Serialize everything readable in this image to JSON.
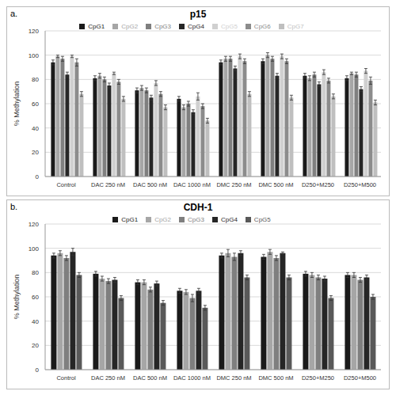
{
  "chart_data": [
    {
      "type": "bar",
      "title": "p15",
      "annotations": [
        "a."
      ],
      "ylabel": "% Methylation",
      "categories": [
        "Control",
        "DAC 250 nM",
        "DAC 500 nM",
        "DAC 1000 nM",
        "DMC 250 nM",
        "DMC 500 nM",
        "D250+M250",
        "D250+M500"
      ],
      "series": [
        {
          "name": "CpG1",
          "color": "#1a1a1a",
          "values": [
            94,
            81,
            71,
            64,
            94,
            95,
            83,
            81
          ],
          "errors": [
            2,
            2,
            2,
            2,
            2,
            2,
            2,
            2
          ]
        },
        {
          "name": "CpG2",
          "color": "#a6a6a6",
          "values": [
            99,
            83,
            73,
            57,
            97,
            100,
            81,
            85
          ],
          "errors": [
            1,
            2,
            2,
            2,
            2,
            2,
            2,
            1
          ]
        },
        {
          "name": "CpG3",
          "color": "#7f7f7f",
          "values": [
            97,
            80,
            71,
            60,
            97,
            97,
            84,
            84
          ],
          "errors": [
            2,
            2,
            2,
            2,
            2,
            2,
            2,
            2
          ]
        },
        {
          "name": "CpG4",
          "color": "#262626",
          "values": [
            84,
            75,
            65,
            53,
            89,
            83,
            76,
            72
          ],
          "errors": [
            2,
            2,
            2,
            2,
            2,
            2,
            2,
            2
          ]
        },
        {
          "name": "CpG5",
          "color": "#d0d0d0",
          "values": [
            99,
            85,
            77,
            66,
            99,
            99,
            86,
            87
          ],
          "errors": [
            1,
            1,
            2,
            3,
            2,
            2,
            2,
            2
          ]
        },
        {
          "name": "CpG6",
          "color": "#8c8c8c",
          "values": [
            94,
            78,
            68,
            58,
            95,
            95,
            79,
            79
          ],
          "errors": [
            3,
            2,
            2,
            2,
            2,
            2,
            2,
            3
          ]
        },
        {
          "name": "CpG7",
          "color": "#bfbfbf",
          "values": [
            68,
            64,
            57,
            46,
            68,
            65,
            66,
            61
          ],
          "errors": [
            2,
            2,
            2,
            2,
            2,
            2,
            2,
            2
          ]
        }
      ],
      "ylim": [
        0,
        120
      ],
      "yticks": [
        0,
        20,
        40,
        60,
        80,
        100,
        120
      ],
      "grid": true,
      "legend": "top"
    },
    {
      "type": "bar",
      "title": "CDH-1",
      "annotations": [
        "b."
      ],
      "ylabel": "% Methylation",
      "categories": [
        "Control",
        "DAC 250 nM",
        "DAC 500 nM",
        "DAC 1000 nM",
        "DMC 250 nM",
        "DMC 500 nM",
        "D250+M250",
        "D250+M500"
      ],
      "series": [
        {
          "name": "CpG1",
          "color": "#1a1a1a",
          "values": [
            94,
            79,
            72,
            65,
            94,
            93,
            79,
            78
          ],
          "errors": [
            2,
            2,
            2,
            2,
            2,
            2,
            2,
            2
          ]
        },
        {
          "name": "CpG2",
          "color": "#a6a6a6",
          "values": [
            96,
            75,
            72,
            64,
            96,
            97,
            78,
            78
          ],
          "errors": [
            2,
            2,
            2,
            2,
            3,
            2,
            2,
            2
          ]
        },
        {
          "name": "CpG3",
          "color": "#7f7f7f",
          "values": [
            92,
            73,
            66,
            59,
            93,
            92,
            76,
            74
          ],
          "errors": [
            2,
            2,
            2,
            3,
            3,
            2,
            2,
            2
          ]
        },
        {
          "name": "CpG4",
          "color": "#262626",
          "values": [
            97,
            74,
            71,
            65,
            96,
            96,
            75,
            76
          ],
          "errors": [
            3,
            2,
            2,
            2,
            2,
            1,
            2,
            2
          ]
        },
        {
          "name": "CpG5",
          "color": "#595959",
          "values": [
            78,
            59,
            55,
            51,
            76,
            76,
            59,
            60
          ],
          "errors": [
            2,
            2,
            2,
            2,
            2,
            2,
            2,
            2
          ]
        }
      ],
      "ylim": [
        0,
        120
      ],
      "yticks": [
        0,
        20,
        40,
        60,
        80,
        100,
        120
      ],
      "grid": true,
      "legend": "top"
    }
  ]
}
